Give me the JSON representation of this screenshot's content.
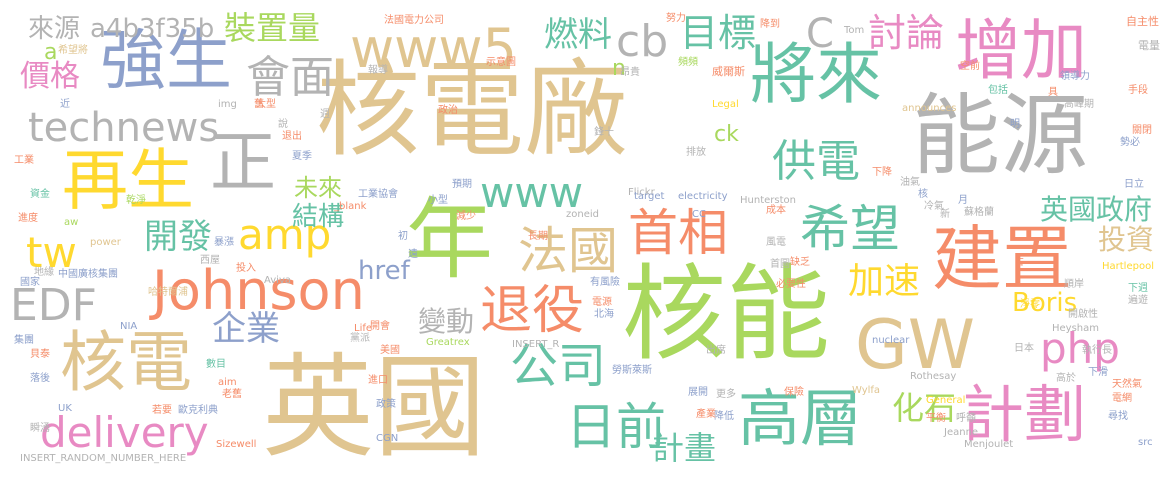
{
  "cloud": {
    "words": [
      {
        "text": "核電廠",
        "color": "#E0C590"
      },
      {
        "text": "核能",
        "color": "#A9D85E"
      },
      {
        "text": "英國",
        "color": "#E0C590"
      },
      {
        "text": "能源",
        "color": "#B3B3B3"
      },
      {
        "text": "年",
        "color": "#A9D85E"
      },
      {
        "text": "建置",
        "color": "#F58C69"
      },
      {
        "text": "增加",
        "color": "#E88AC3"
      },
      {
        "text": "將來",
        "color": "#66C2A5"
      },
      {
        "text": "強生",
        "color": "#8DA0CB"
      },
      {
        "text": "再生",
        "color": "#FFD92F"
      },
      {
        "text": "核電",
        "color": "#E0C590"
      },
      {
        "text": "GW",
        "color": "#E0C590"
      },
      {
        "text": "高層",
        "color": "#66C2A5"
      },
      {
        "text": "計劃",
        "color": "#E88AC3"
      },
      {
        "text": "www5",
        "color": "#E0C590"
      },
      {
        "text": "Johnson",
        "color": "#F58C69"
      },
      {
        "text": "首相",
        "color": "#F58C69"
      },
      {
        "text": "希望",
        "color": "#66C2A5"
      },
      {
        "text": "日前",
        "color": "#66C2A5"
      },
      {
        "text": "technews",
        "color": "#B3B3B3"
      },
      {
        "text": "正",
        "color": "#B3B3B3"
      },
      {
        "text": "delivery",
        "color": "#E88AC3"
      },
      {
        "text": "退役",
        "color": "#F58C69"
      },
      {
        "text": "法國",
        "color": "#E0C590"
      },
      {
        "text": "公司",
        "color": "#66C2A5"
      },
      {
        "text": "供電",
        "color": "#66C2A5"
      },
      {
        "text": "EDF",
        "color": "#B3B3B3"
      },
      {
        "text": "amp",
        "color": "#FFD92F"
      },
      {
        "text": "www",
        "color": "#66C2A5"
      },
      {
        "text": "php",
        "color": "#E88AC3"
      },
      {
        "text": "會面",
        "color": "#B3B3B3"
      },
      {
        "text": "cb",
        "color": "#B3B3B3"
      },
      {
        "text": "tw",
        "color": "#FFD92F"
      },
      {
        "text": "討論",
        "color": "#E88AC3"
      },
      {
        "text": "目標",
        "color": "#66C2A5"
      },
      {
        "text": "加速",
        "color": "#FFD92F"
      },
      {
        "text": "開發",
        "color": "#66C2A5"
      },
      {
        "text": "企業",
        "color": "#8DA0CB"
      },
      {
        "text": "C",
        "color": "#B3B3B3"
      },
      {
        "text": "燃料",
        "color": "#66C2A5"
      },
      {
        "text": "裝置量",
        "color": "#A9D85E"
      },
      {
        "text": "價格",
        "color": "#E88AC3"
      },
      {
        "text": "計畫",
        "color": "#66C2A5"
      },
      {
        "text": "化石",
        "color": "#A9D85E"
      },
      {
        "text": "投資",
        "color": "#E0C590"
      },
      {
        "text": "英國政府",
        "color": "#66C2A5"
      },
      {
        "text": "變動",
        "color": "#B3B3B3"
      },
      {
        "text": "結構",
        "color": "#66C2A5"
      },
      {
        "text": "未來",
        "color": "#A9D85E"
      },
      {
        "text": "Boris",
        "color": "#FFD92F"
      },
      {
        "text": "href",
        "color": "#8DA0CB"
      },
      {
        "text": "來源",
        "color": "#B3B3B3"
      },
      {
        "text": "a4b3f35b",
        "color": "#B3B3B3"
      },
      {
        "text": "ck",
        "color": "#A9D85E"
      },
      {
        "text": "n",
        "color": "#A9D85E"
      },
      {
        "text": "a",
        "color": "#A9D85E"
      },
      {
        "text": "法國電力公司",
        "color": "#F58C69"
      },
      {
        "text": "降到",
        "color": "#F58C69"
      },
      {
        "text": "Tom",
        "color": "#B3B3B3"
      },
      {
        "text": "努力",
        "color": "#F58C69"
      },
      {
        "text": "自主性",
        "color": "#F58C69"
      },
      {
        "text": "電量",
        "color": "#B3B3B3"
      },
      {
        "text": "希望將",
        "color": "#E0C590"
      },
      {
        "text": "示意圖",
        "color": "#F58C69"
      },
      {
        "text": "頻頻",
        "color": "#A9D85E"
      },
      {
        "text": "威爾斯",
        "color": "#F58C69"
      },
      {
        "text": "空前",
        "color": "#F58C69"
      },
      {
        "text": "領導力",
        "color": "#8DA0CB"
      },
      {
        "text": "手段",
        "color": "#F58C69"
      },
      {
        "text": "昂貴",
        "color": "#B3B3B3"
      },
      {
        "text": "包括",
        "color": "#66C2A5"
      },
      {
        "text": "高峰期",
        "color": "#B3B3B3"
      },
      {
        "text": "具",
        "color": "#F58C69"
      },
      {
        "text": "近",
        "color": "#8DA0CB"
      },
      {
        "text": "img",
        "color": "#B3B3B3"
      },
      {
        "text": "大型",
        "color": "#F58C69"
      },
      {
        "text": "announces",
        "color": "#E0C590"
      },
      {
        "text": "Legal",
        "color": "#FFD92F"
      },
      {
        "text": "關閉",
        "color": "#F58C69"
      },
      {
        "text": "政治",
        "color": "#F58C69"
      },
      {
        "text": "勢必",
        "color": "#8DA0CB"
      },
      {
        "text": "工業",
        "color": "#F58C69"
      },
      {
        "text": "說",
        "color": "#B3B3B3"
      },
      {
        "text": "退出",
        "color": "#F58C69"
      },
      {
        "text": "夏季",
        "color": "#8DA0CB"
      },
      {
        "text": "排放",
        "color": "#B3B3B3"
      },
      {
        "text": "下降",
        "color": "#F58C69"
      },
      {
        "text": "油氣",
        "color": "#B3B3B3"
      },
      {
        "text": "資金",
        "color": "#66C2A5"
      },
      {
        "text": "乾淨",
        "color": "#A9D85E"
      },
      {
        "text": "工業協會",
        "color": "#8DA0CB"
      },
      {
        "text": "預期",
        "color": "#8DA0CB"
      },
      {
        "text": "Flickr",
        "color": "#B3B3B3"
      },
      {
        "text": "日立",
        "color": "#8DA0CB"
      },
      {
        "text": "_blank",
        "color": "#F58C69"
      },
      {
        "text": "小型",
        "color": "#8DA0CB"
      },
      {
        "text": "target",
        "color": "#8DA0CB"
      },
      {
        "text": "electricity",
        "color": "#8DA0CB"
      },
      {
        "text": "Hunterston",
        "color": "#B3B3B3"
      },
      {
        "text": "核",
        "color": "#8DA0CB"
      },
      {
        "text": "冷氣",
        "color": "#B3B3B3"
      },
      {
        "text": "減少",
        "color": "#F58C69"
      },
      {
        "text": "zoneid",
        "color": "#B3B3B3"
      },
      {
        "text": "CC",
        "color": "#8DA0CB"
      },
      {
        "text": "成本",
        "color": "#F58C69"
      },
      {
        "text": "蘇格蘭",
        "color": "#B3B3B3"
      },
      {
        "text": "新",
        "color": "#B3B3B3"
      },
      {
        "text": "進度",
        "color": "#F58C69"
      },
      {
        "text": "aw",
        "color": "#A9D85E"
      },
      {
        "text": "長期",
        "color": "#F58C69"
      },
      {
        "text": "風電",
        "color": "#B3B3B3"
      },
      {
        "text": "中國廣核集團",
        "color": "#8DA0CB"
      },
      {
        "text": "power",
        "color": "#E0C590"
      },
      {
        "text": "暴漲",
        "color": "#8DA0CB"
      },
      {
        "text": "遠",
        "color": "#8DA0CB"
      },
      {
        "text": "首圖",
        "color": "#B3B3B3"
      },
      {
        "text": "Hartlepool",
        "color": "#FFD92F"
      },
      {
        "text": "地緣",
        "color": "#B3B3B3"
      },
      {
        "text": "西屋",
        "color": "#B3B3B3"
      },
      {
        "text": "投入",
        "color": "#F58C69"
      },
      {
        "text": "缺乏",
        "color": "#F58C69"
      },
      {
        "text": "占",
        "color": "#F58C69"
      },
      {
        "text": "國家",
        "color": "#8DA0CB"
      },
      {
        "text": "Aviva",
        "color": "#B3B3B3"
      },
      {
        "text": "有風險",
        "color": "#8DA0CB"
      },
      {
        "text": "必要性",
        "color": "#F58C69"
      },
      {
        "text": "順岸",
        "color": "#B3B3B3"
      },
      {
        "text": "淨零",
        "color": "#FFD92F"
      },
      {
        "text": "下週",
        "color": "#66C2A5"
      },
      {
        "text": "遍遊",
        "color": "#B3B3B3"
      },
      {
        "text": "哈特爾浦",
        "color": "#E0C590"
      },
      {
        "text": "電源",
        "color": "#F58C69"
      },
      {
        "text": "Heysham",
        "color": "#B3B3B3"
      },
      {
        "text": "開啟性",
        "color": "#B3B3B3"
      },
      {
        "text": "NIA",
        "color": "#8DA0CB"
      },
      {
        "text": "Life",
        "color": "#F58C69"
      },
      {
        "text": "北海",
        "color": "#8DA0CB"
      },
      {
        "text": "集團",
        "color": "#8DA0CB"
      },
      {
        "text": "開會",
        "color": "#F58C69"
      },
      {
        "text": "黨派",
        "color": "#B3B3B3"
      },
      {
        "text": "Greatrex",
        "color": "#A9D85E"
      },
      {
        "text": "INSERT_R",
        "color": "#B3B3B3"
      },
      {
        "text": "nuclear",
        "color": "#8DA0CB"
      },
      {
        "text": "日本",
        "color": "#B3B3B3"
      },
      {
        "text": "貝泰",
        "color": "#F58C69"
      },
      {
        "text": "美國",
        "color": "#F58C69"
      },
      {
        "text": "出席",
        "color": "#B3B3B3"
      },
      {
        "text": "執行長",
        "color": "#B3B3B3"
      },
      {
        "text": "數目",
        "color": "#66C2A5"
      },
      {
        "text": "勞斯萊斯",
        "color": "#8DA0CB"
      },
      {
        "text": "展開",
        "color": "#8DA0CB"
      },
      {
        "text": "更多",
        "color": "#B3B3B3"
      },
      {
        "text": "保險",
        "color": "#F58C69"
      },
      {
        "text": "Rothesay",
        "color": "#B3B3B3"
      },
      {
        "text": "Wylfa",
        "color": "#E0C590"
      },
      {
        "text": "下滑",
        "color": "#8DA0CB"
      },
      {
        "text": "高於",
        "color": "#B3B3B3"
      },
      {
        "text": "落後",
        "color": "#8DA0CB"
      },
      {
        "text": "aim",
        "color": "#F58C69"
      },
      {
        "text": "老舊",
        "color": "#F58C69"
      },
      {
        "text": "進口",
        "color": "#F58C69"
      },
      {
        "text": "天然氣",
        "color": "#F58C69"
      },
      {
        "text": "電網",
        "color": "#F58C69"
      },
      {
        "text": "降低",
        "color": "#8DA0CB"
      },
      {
        "text": "產業",
        "color": "#F58C69"
      },
      {
        "text": "General",
        "color": "#FFD92F"
      },
      {
        "text": "UK",
        "color": "#8DA0CB"
      },
      {
        "text": "若要",
        "color": "#F58C69"
      },
      {
        "text": "政策",
        "color": "#8DA0CB"
      },
      {
        "text": "平衡",
        "color": "#F58C69"
      },
      {
        "text": "呼籲",
        "color": "#B3B3B3"
      },
      {
        "text": "尋找",
        "color": "#8DA0CB"
      },
      {
        "text": "瞬湧",
        "color": "#B3B3B3"
      },
      {
        "text": "歐克利典",
        "color": "#8DA0CB"
      },
      {
        "text": "CGN",
        "color": "#8DA0CB"
      },
      {
        "text": "Jeanne",
        "color": "#B3B3B3"
      },
      {
        "text": "Sizewell",
        "color": "#F58C69"
      },
      {
        "text": "INSERT_RANDOM_NUMBER_HERE",
        "color": "#B3B3B3"
      },
      {
        "text": "Menjoulet",
        "color": "#B3B3B3"
      },
      {
        "text": "src",
        "color": "#8DA0CB"
      },
      {
        "text": "鋒十",
        "color": "#B3B3B3"
      },
      {
        "text": "初",
        "color": "#8DA0CB"
      },
      {
        "text": "舊",
        "color": "#F58C69"
      },
      {
        "text": "月",
        "color": "#8DA0CB"
      },
      {
        "text": "週",
        "color": "#B3B3B3"
      },
      {
        "text": "明",
        "color": "#8DA0CB"
      },
      {
        "text": "報導",
        "color": "#B3B3B3"
      }
    ]
  }
}
